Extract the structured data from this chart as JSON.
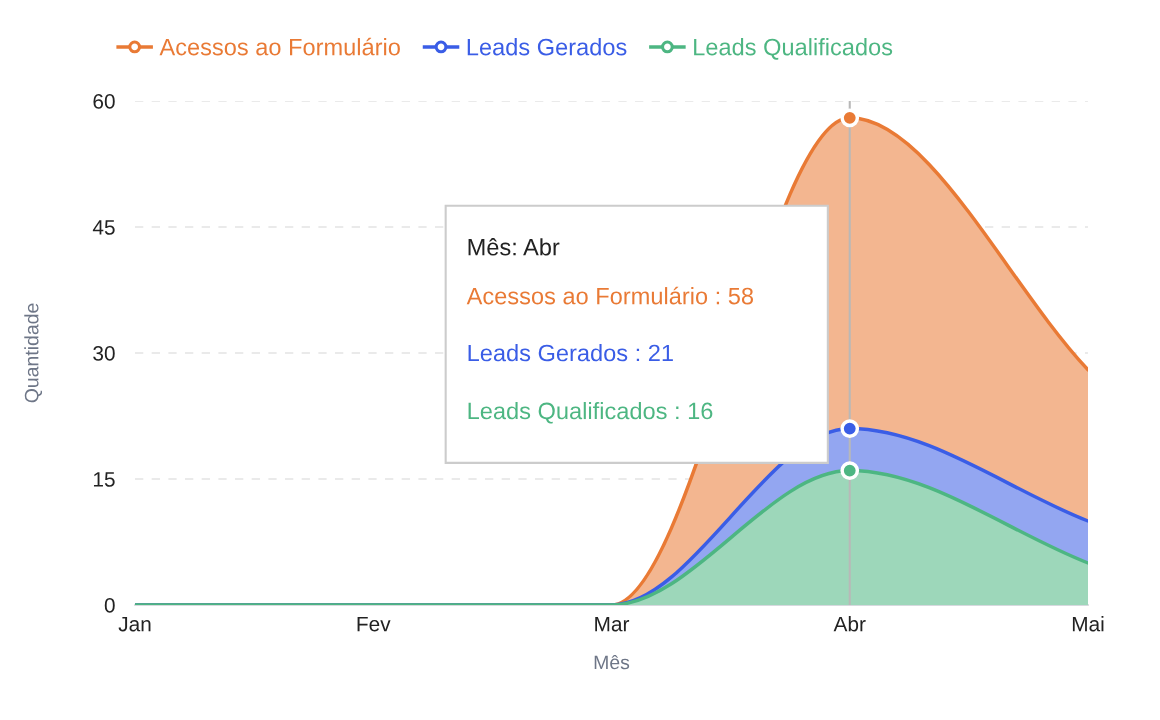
{
  "chart_data": {
    "type": "area",
    "categories": [
      "Jan",
      "Fev",
      "Mar",
      "Abr",
      "Mai"
    ],
    "series": [
      {
        "name": "Acessos ao Formulário",
        "color": "#e97a35",
        "values": [
          0,
          0,
          0,
          58,
          28
        ]
      },
      {
        "name": "Leads Gerados",
        "color": "#3a5de6",
        "values": [
          0,
          0,
          0,
          21,
          10
        ]
      },
      {
        "name": "Leads Qualificados",
        "color": "#4db682",
        "values": [
          0,
          0,
          0,
          16,
          5
        ]
      }
    ],
    "xlabel": "Mês",
    "ylabel": "Quantidade",
    "ylim": [
      0,
      60
    ],
    "yticks": [
      0,
      15,
      30,
      45,
      60
    ],
    "grid": "y",
    "legend": "top",
    "ref_lines": [
      {
        "axis": "x",
        "value": "Abr",
        "color": "#b8b8b8"
      }
    ],
    "annotations": [
      "Mês: Abr",
      "Acessos ao Formulário : 58",
      "Leads Gerados : 21",
      "Leads Qualificados : 16"
    ]
  }
}
